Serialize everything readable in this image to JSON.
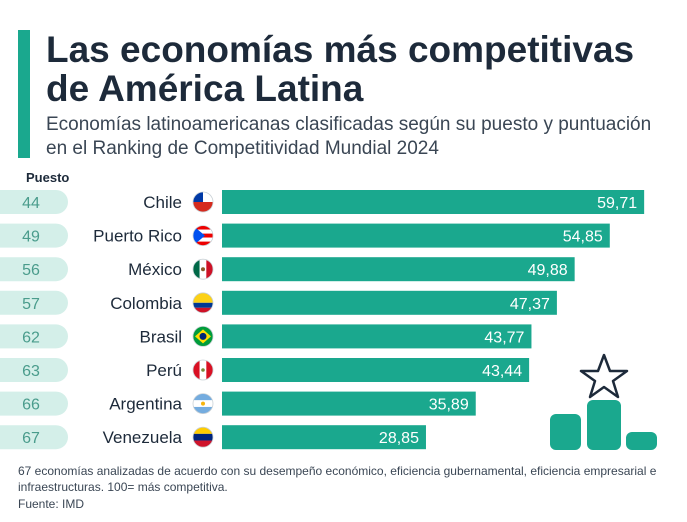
{
  "header": {
    "title": "Las economías más competitivas de América Latina",
    "subtitle": "Economías latinoamericanas clasificadas según su puesto y puntuación en el Ranking de Competitividad Mundial 2024",
    "rank_column_label": "Puesto"
  },
  "chart_data": {
    "type": "bar",
    "orientation": "horizontal",
    "title": "Las economías más competitivas de América Latina",
    "categories": [
      "Chile",
      "Puerto Rico",
      "México",
      "Colombia",
      "Brasil",
      "Perú",
      "Argentina",
      "Venezuela"
    ],
    "ranks": [
      "44",
      "49",
      "56",
      "57",
      "62",
      "63",
      "66",
      "67"
    ],
    "values": [
      59.71,
      54.85,
      49.88,
      47.37,
      43.77,
      43.44,
      35.89,
      28.85
    ],
    "value_labels": [
      "59,71",
      "54,85",
      "49,88",
      "47,37",
      "43,77",
      "43,44",
      "35,89",
      "28,85"
    ],
    "flags": [
      "chile-flag-icon",
      "puerto-rico-flag-icon",
      "mexico-flag-icon",
      "colombia-flag-icon",
      "brazil-flag-icon",
      "peru-flag-icon",
      "argentina-flag-icon",
      "venezuela-flag-icon"
    ],
    "xlim": [
      0,
      100
    ],
    "bar_color": "#1aa88e",
    "rank_pill_color": "#d4efe9"
  },
  "footer": {
    "note": "67 economías analizadas de acuerdo con su desempeño económico, eficiencia gubernamental, eficiencia empresarial e infraestructuras. 100= más competitiva.",
    "source": "Fuente: IMD"
  },
  "colors": {
    "accent": "#1aa88e",
    "text": "#1d2a3a"
  },
  "icons": [
    "star-icon",
    "podium-icon"
  ]
}
